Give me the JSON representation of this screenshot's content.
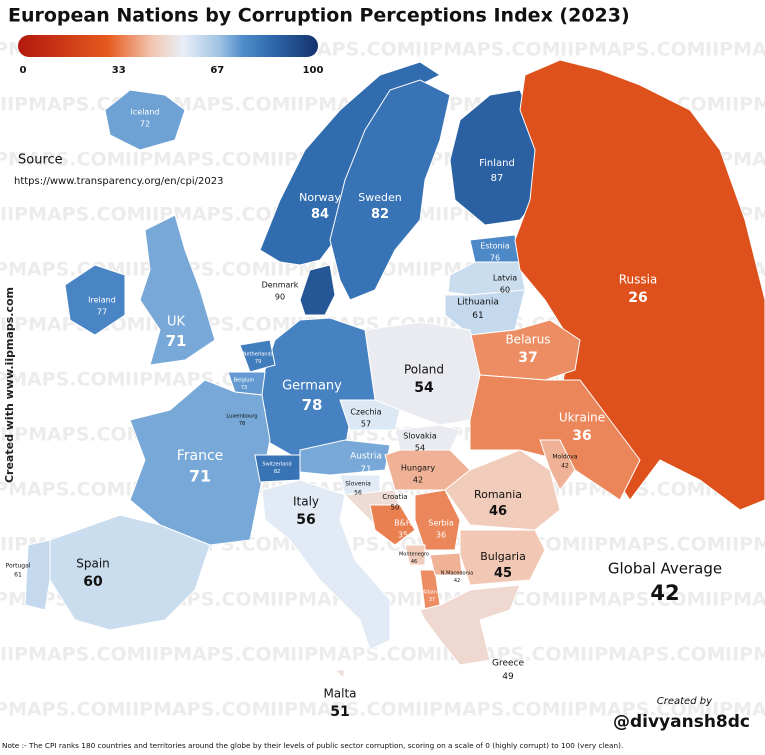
{
  "title": "European Nations by Corruption Perceptions Index (2023)",
  "colorbar": {
    "min": 0,
    "max": 100,
    "ticks": [
      0,
      33,
      67,
      100
    ]
  },
  "source": {
    "label": "Source",
    "url": "https://www.transparency.org/en/cpi/2023"
  },
  "side_text": "Created with www.iipmaps.com",
  "watermark": "IIPMAPS.COM",
  "global_average": {
    "label": "Global Average",
    "value": 42
  },
  "credit": {
    "label": "Created by",
    "handle": "@divyansh8dc"
  },
  "note": "Note :- The CPI ranks 180 countries and territories around the globe by their levels of public sector corruption, scoring on a scale of 0 (highly corrupt) to 100 (very clean).",
  "countries": [
    {
      "name": "Iceland",
      "value": 72
    },
    {
      "name": "Ireland",
      "value": 77
    },
    {
      "name": "UK",
      "value": 71
    },
    {
      "name": "Norway",
      "value": 84
    },
    {
      "name": "Sweden",
      "value": 82
    },
    {
      "name": "Finland",
      "value": 87
    },
    {
      "name": "Denmark",
      "value": 90
    },
    {
      "name": "Estonia",
      "value": 76
    },
    {
      "name": "Latvia",
      "value": 60
    },
    {
      "name": "Lithuania",
      "value": 61
    },
    {
      "name": "Russia",
      "value": 26
    },
    {
      "name": "Belarus",
      "value": 37
    },
    {
      "name": "Poland",
      "value": 54
    },
    {
      "name": "Germany",
      "value": 78
    },
    {
      "name": "Netherlands",
      "value": 79
    },
    {
      "name": "Belgium",
      "value": 73
    },
    {
      "name": "Luxembourg",
      "value": 78
    },
    {
      "name": "France",
      "value": 71
    },
    {
      "name": "Switzerland",
      "value": 82
    },
    {
      "name": "Austria",
      "value": 71
    },
    {
      "name": "Czechia",
      "value": 57
    },
    {
      "name": "Slovakia",
      "value": 54
    },
    {
      "name": "Hungary",
      "value": 42
    },
    {
      "name": "Ukraine",
      "value": 36
    },
    {
      "name": "Moldova",
      "value": 42
    },
    {
      "name": "Romania",
      "value": 46
    },
    {
      "name": "Slovenia",
      "value": 56
    },
    {
      "name": "Croatia",
      "value": 50
    },
    {
      "name": "B&H",
      "value": 35
    },
    {
      "name": "Serbia",
      "value": 36
    },
    {
      "name": "Montenegro",
      "value": 46
    },
    {
      "name": "Albania",
      "value": 37
    },
    {
      "name": "N.Macedonia",
      "value": 42
    },
    {
      "name": "Bulgaria",
      "value": 45
    },
    {
      "name": "Greece",
      "value": 49
    },
    {
      "name": "Italy",
      "value": 56
    },
    {
      "name": "Spain",
      "value": 60
    },
    {
      "name": "Portugal",
      "value": 61
    },
    {
      "name": "Malta",
      "value": 51
    }
  ]
}
